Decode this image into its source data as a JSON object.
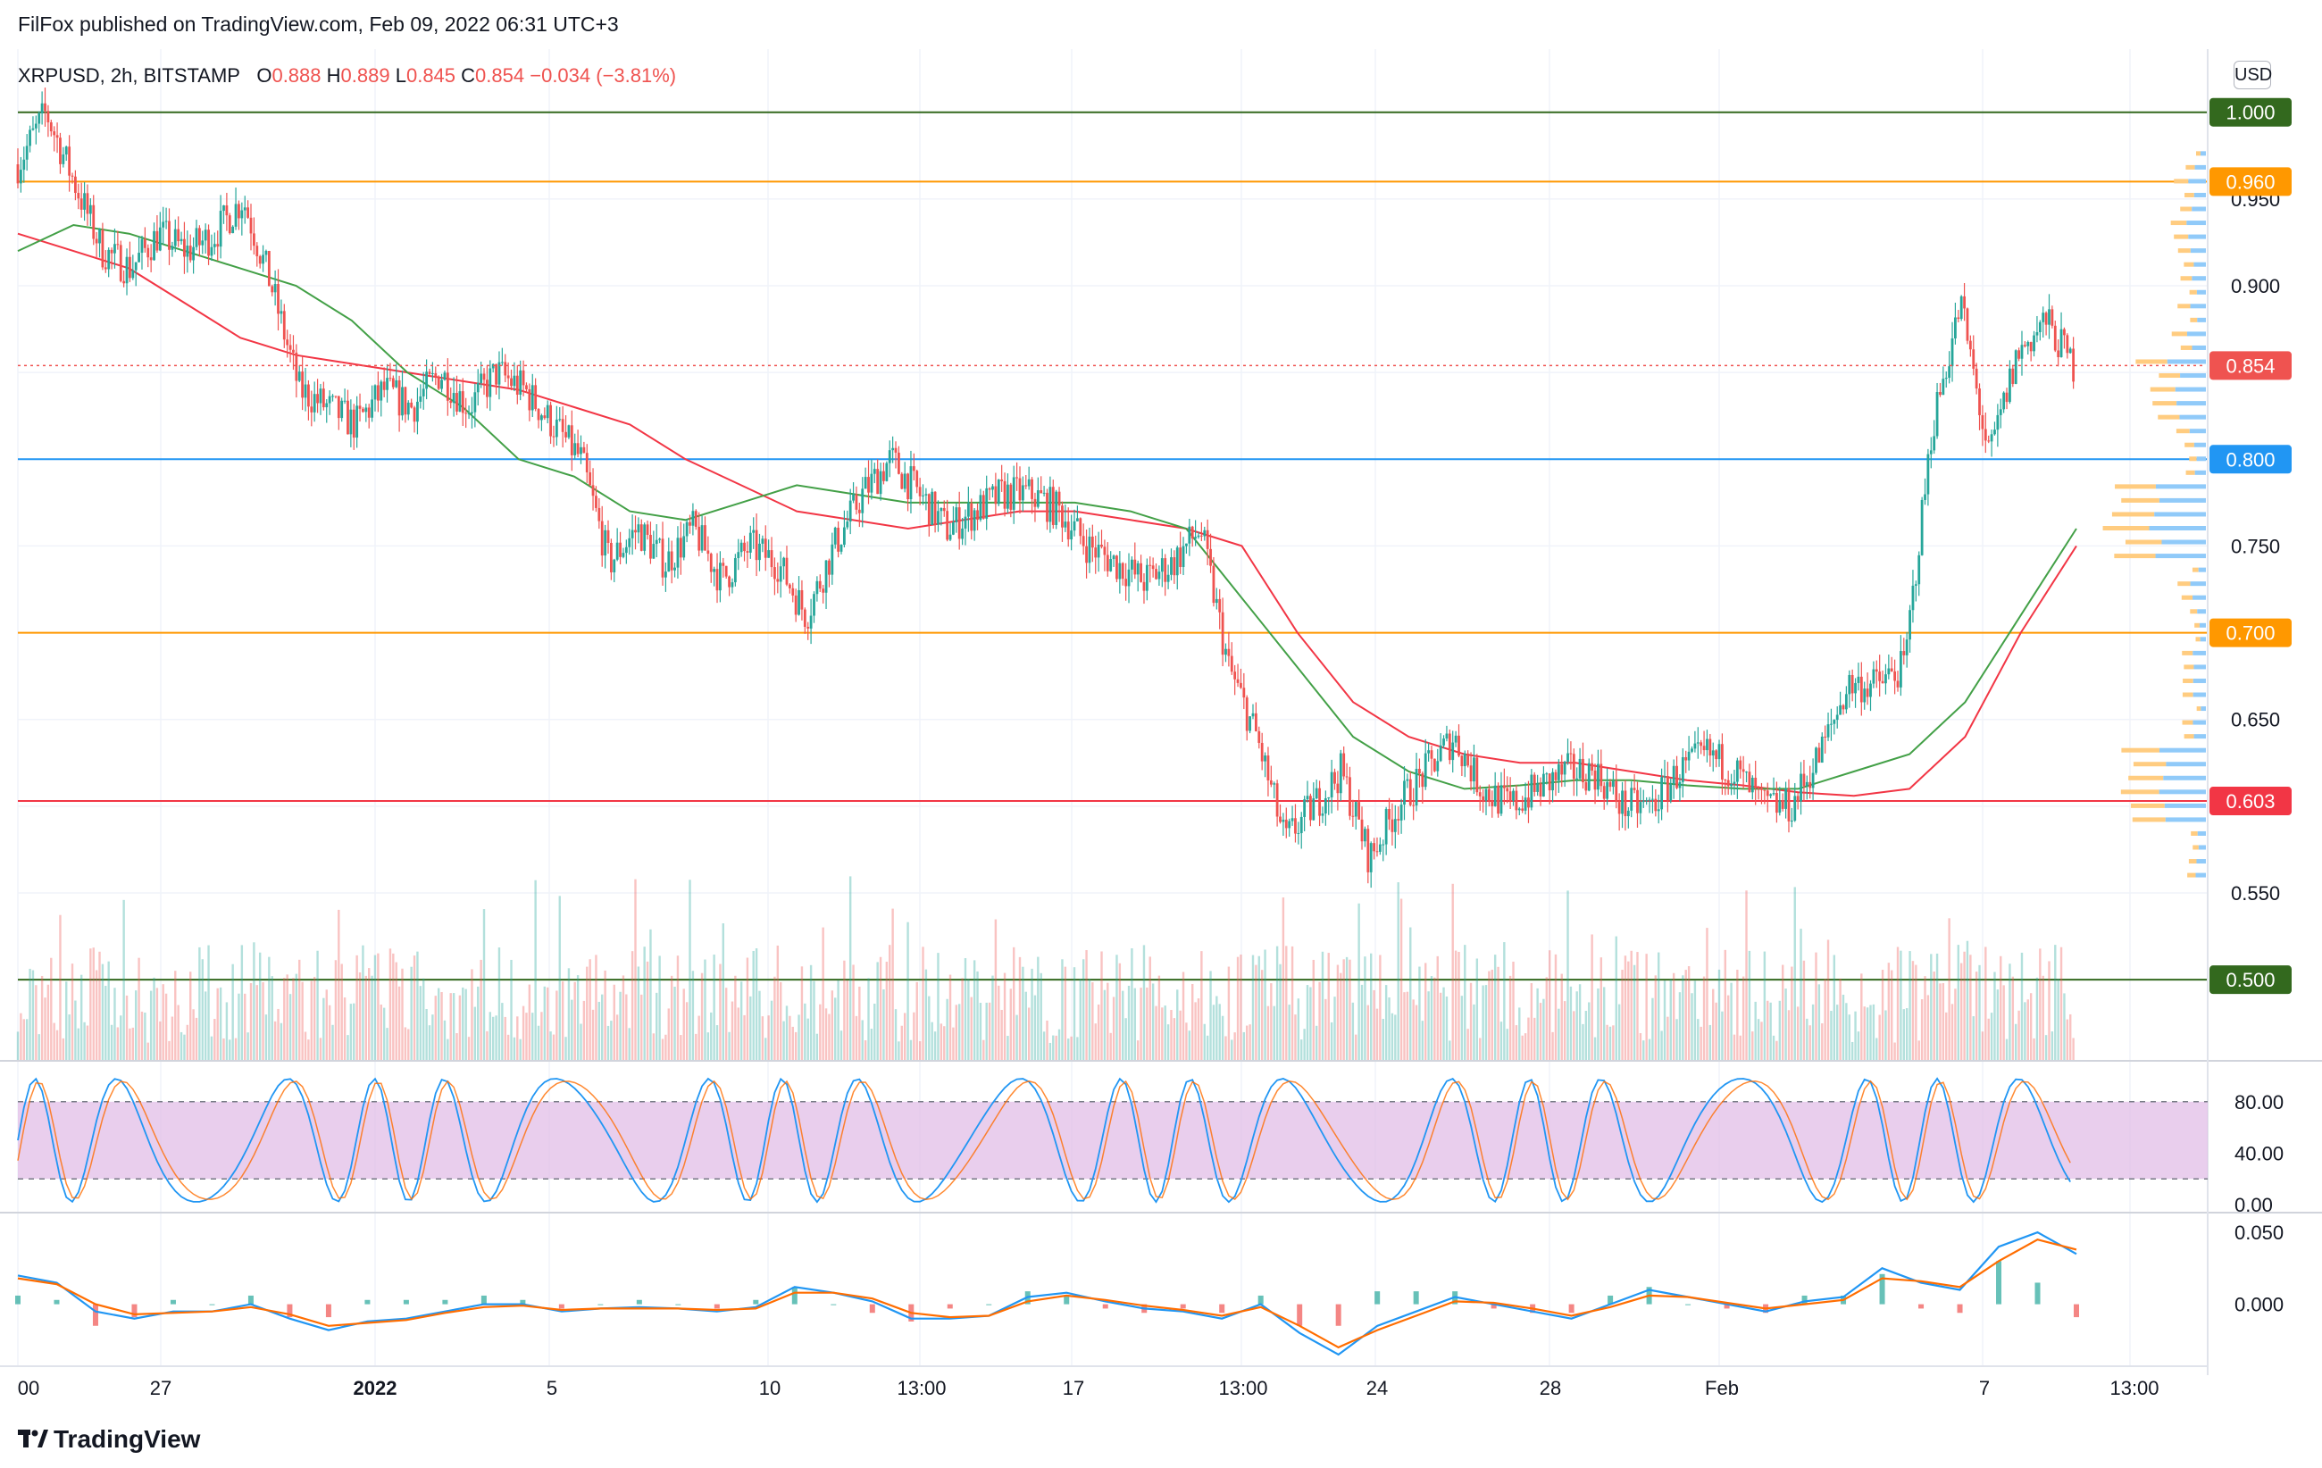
{
  "header": {
    "published_text": "FilFox published on TradingView.com, Feb 09, 2022 06:31 UTC+3"
  },
  "symbol": {
    "label": "XRPUSD, 2h, BITSTAMP",
    "open_label": "O",
    "open": "0.888",
    "high_label": "H",
    "high": "0.889",
    "low_label": "L",
    "low": "0.845",
    "close_label": "C",
    "close": "0.854",
    "change": "−0.034 (−3.81%)"
  },
  "currency_button": "USD",
  "footer": {
    "brand": "TradingView"
  },
  "colors": {
    "up": "#26a69a",
    "down": "#ef5350",
    "ma_red": "#f23645",
    "ma_green": "#43a047",
    "level_green": "#33691e",
    "level_orange": "#ff9800",
    "level_blue": "#2196f3",
    "level_red": "#ef5350",
    "stoch_band": "#e1bee7",
    "macd_blue": "#2196f3",
    "macd_orange": "#ff6d00"
  },
  "chart_data": {
    "type": "candlestick",
    "price_axis": {
      "ticks": [
        "0.950",
        "0.900",
        "0.750",
        "0.650",
        "0.550"
      ],
      "range": [
        0.46,
        1.06
      ]
    },
    "price_badges": [
      {
        "label": "1.000",
        "value": 1.0,
        "color": "#33691e"
      },
      {
        "label": "0.960",
        "value": 0.96,
        "color": "#ff9800"
      },
      {
        "label": "0.854",
        "value": 0.854,
        "color": "#ef5350"
      },
      {
        "label": "0.800",
        "value": 0.8,
        "color": "#2196f3"
      },
      {
        "label": "0.700",
        "value": 0.7,
        "color": "#ff9800"
      },
      {
        "label": "0.603",
        "value": 0.603,
        "color": "#f23645"
      },
      {
        "label": "0.500",
        "value": 0.5,
        "color": "#33691e"
      }
    ],
    "horizontal_levels": [
      {
        "value": 1.0,
        "color": "#33691e"
      },
      {
        "value": 0.96,
        "color": "#ff9800"
      },
      {
        "value": 0.8,
        "color": "#2196f3"
      },
      {
        "value": 0.7,
        "color": "#ff9800"
      },
      {
        "value": 0.603,
        "color": "#f23645"
      },
      {
        "value": 0.5,
        "color": "#33691e"
      }
    ],
    "last_price": 0.854,
    "x_axis_labels": [
      {
        "label": "00",
        "bold": false
      },
      {
        "label": "27",
        "bold": false
      },
      {
        "label": "2022",
        "bold": true
      },
      {
        "label": "5",
        "bold": false
      },
      {
        "label": "10",
        "bold": false
      },
      {
        "label": "13:00",
        "bold": false
      },
      {
        "label": "17",
        "bold": false
      },
      {
        "label": "13:00",
        "bold": false
      },
      {
        "label": "24",
        "bold": false
      },
      {
        "label": "28",
        "bold": false
      },
      {
        "label": "Feb",
        "bold": false
      },
      {
        "label": "7",
        "bold": false
      },
      {
        "label": "13:00",
        "bold": false
      }
    ],
    "price_path": [
      0.97,
      1.0,
      0.96,
      0.92,
      0.91,
      0.93,
      0.92,
      0.93,
      0.95,
      0.9,
      0.84,
      0.83,
      0.82,
      0.84,
      0.83,
      0.85,
      0.83,
      0.85,
      0.84,
      0.82,
      0.8,
      0.74,
      0.76,
      0.74,
      0.76,
      0.73,
      0.75,
      0.74,
      0.71,
      0.75,
      0.78,
      0.8,
      0.78,
      0.76,
      0.77,
      0.78,
      0.78,
      0.77,
      0.75,
      0.74,
      0.73,
      0.74,
      0.76,
      0.68,
      0.64,
      0.58,
      0.6,
      0.62,
      0.57,
      0.6,
      0.62,
      0.64,
      0.61,
      0.6,
      0.61,
      0.62,
      0.62,
      0.6,
      0.6,
      0.62,
      0.63,
      0.62,
      0.6,
      0.6,
      0.63,
      0.67,
      0.67,
      0.68,
      0.82,
      0.89,
      0.8,
      0.86,
      0.88,
      0.854
    ],
    "moving_averages": [
      {
        "color": "#f23645",
        "values": [
          0.93,
          0.92,
          0.91,
          0.89,
          0.87,
          0.86,
          0.855,
          0.85,
          0.845,
          0.84,
          0.83,
          0.82,
          0.8,
          0.785,
          0.77,
          0.765,
          0.76,
          0.765,
          0.77,
          0.77,
          0.765,
          0.76,
          0.75,
          0.7,
          0.66,
          0.64,
          0.63,
          0.625,
          0.625,
          0.62,
          0.615,
          0.612,
          0.608,
          0.606,
          0.61,
          0.64,
          0.7,
          0.75
        ]
      },
      {
        "color": "#43a047",
        "values": [
          0.92,
          0.935,
          0.93,
          0.92,
          0.91,
          0.9,
          0.88,
          0.85,
          0.83,
          0.8,
          0.79,
          0.77,
          0.765,
          0.775,
          0.785,
          0.78,
          0.775,
          0.775,
          0.775,
          0.775,
          0.77,
          0.76,
          0.72,
          0.68,
          0.64,
          0.62,
          0.61,
          0.612,
          0.615,
          0.615,
          0.612,
          0.61,
          0.61,
          0.62,
          0.63,
          0.66,
          0.71,
          0.76
        ]
      }
    ],
    "stochastic": {
      "axis_ticks": [
        "80.00",
        "40.00",
        "0.00"
      ],
      "range": [
        0,
        100
      ],
      "overbought": 80,
      "oversold": 20
    },
    "macd": {
      "axis_ticks": [
        "0.050",
        "0.000"
      ],
      "range": [
        -0.04,
        0.06
      ],
      "macd_line": [
        0.02,
        0.015,
        -0.005,
        -0.01,
        -0.005,
        -0.005,
        0.0,
        -0.01,
        -0.018,
        -0.012,
        -0.01,
        -0.005,
        0.0,
        0.0,
        -0.005,
        -0.003,
        -0.002,
        -0.003,
        -0.005,
        -0.002,
        0.012,
        0.008,
        0.002,
        -0.01,
        -0.01,
        -0.008,
        0.005,
        0.008,
        0.002,
        -0.003,
        -0.005,
        -0.01,
        0.0,
        -0.02,
        -0.035,
        -0.015,
        -0.005,
        0.005,
        0.0,
        -0.005,
        -0.01,
        0.0,
        0.01,
        0.005,
        0.0,
        -0.005,
        0.002,
        0.005,
        0.025,
        0.015,
        0.01,
        0.04,
        0.05,
        0.035
      ],
      "signal_line": [
        0.018,
        0.014,
        0.0,
        -0.007,
        -0.006,
        -0.005,
        -0.002,
        -0.007,
        -0.015,
        -0.013,
        -0.011,
        -0.006,
        -0.002,
        -0.001,
        -0.004,
        -0.003,
        -0.003,
        -0.003,
        -0.004,
        -0.003,
        0.008,
        0.008,
        0.004,
        -0.006,
        -0.009,
        -0.008,
        0.002,
        0.006,
        0.003,
        -0.001,
        -0.004,
        -0.008,
        -0.002,
        -0.015,
        -0.03,
        -0.018,
        -0.008,
        0.002,
        0.001,
        -0.003,
        -0.008,
        -0.002,
        0.006,
        0.005,
        0.001,
        -0.003,
        0.0,
        0.003,
        0.018,
        0.016,
        0.012,
        0.03,
        0.045,
        0.038
      ]
    }
  }
}
